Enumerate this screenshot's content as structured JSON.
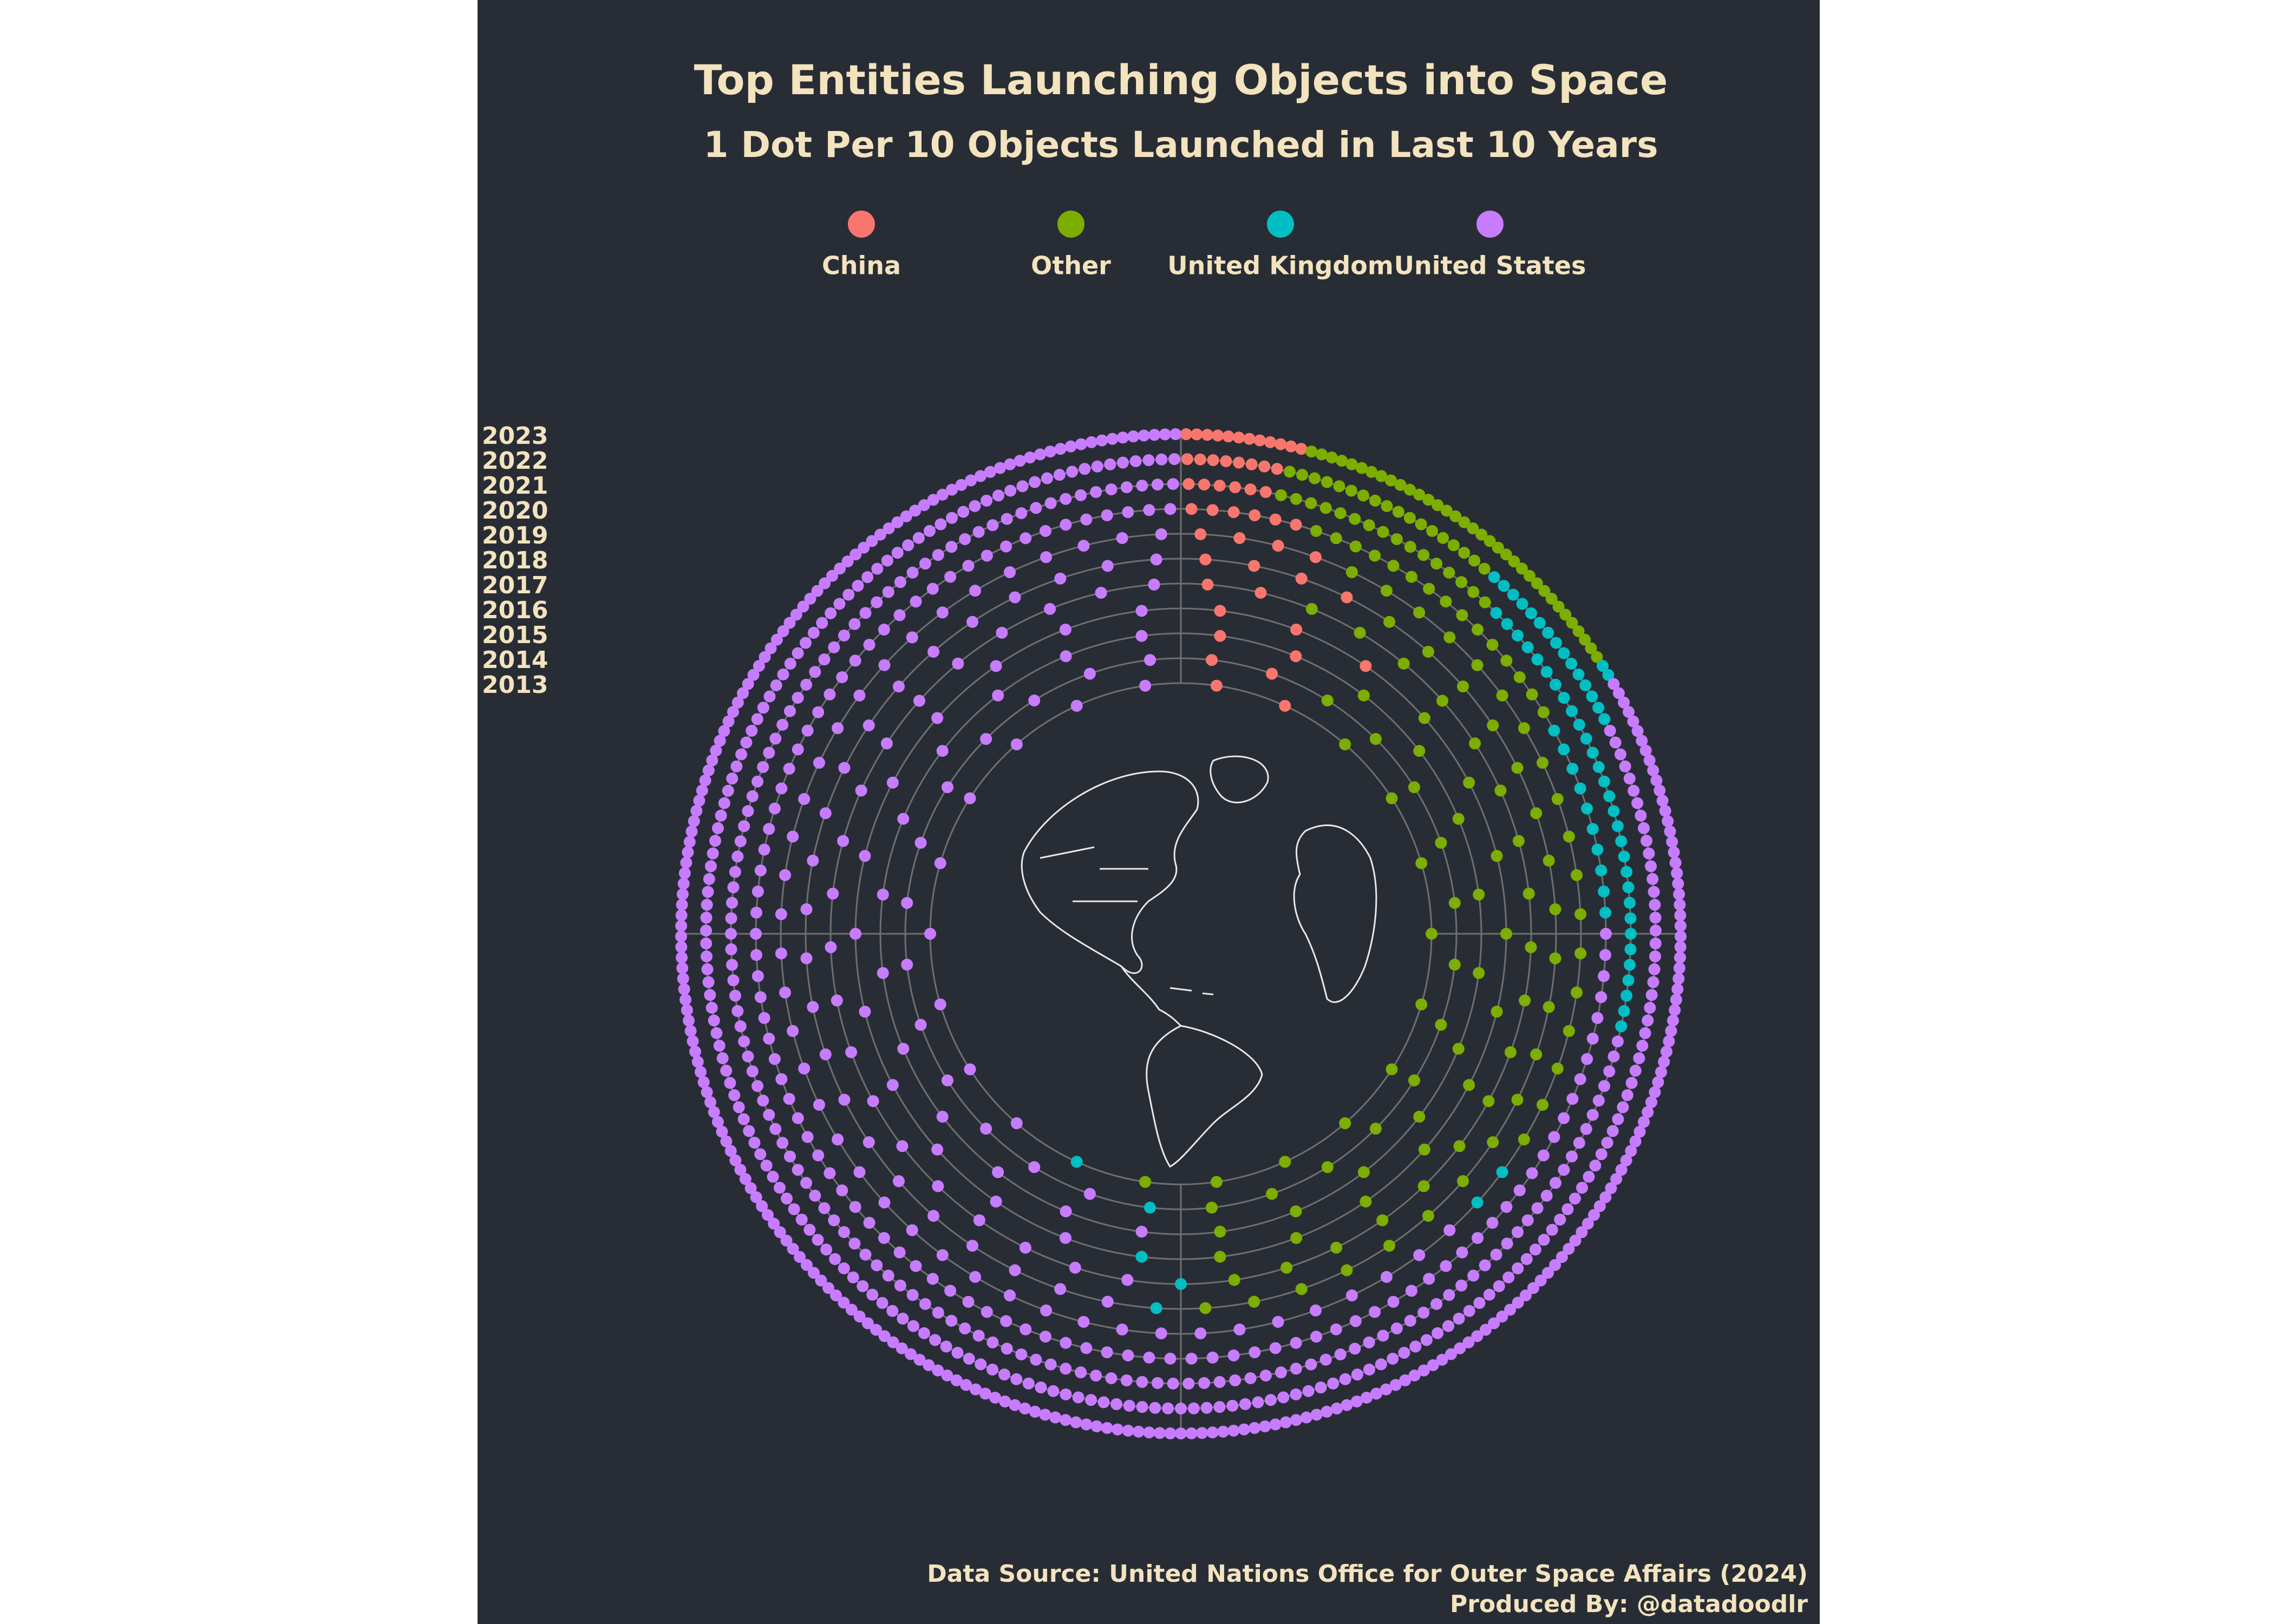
{
  "chart_data": {
    "type": "radial_dot",
    "title": "Top Entities Launching Objects into Space",
    "subtitle": "1 Dot Per 10 Objects Launched in Last 10 Years",
    "categories": [
      "2013",
      "2014",
      "2015",
      "2016",
      "2017",
      "2018",
      "2019",
      "2020",
      "2021",
      "2022",
      "2023"
    ],
    "series": [
      {
        "name": "China",
        "color": "#F8766D",
        "values": [
          2,
          2,
          2,
          3,
          2,
          4,
          4,
          6,
          6,
          8,
          12
        ]
      },
      {
        "name": "Other",
        "color": "#7CAE00",
        "values": [
          10,
          12,
          10,
          10,
          18,
          20,
          18,
          15,
          16,
          18,
          35
        ]
      },
      {
        "name": "United Kingdom",
        "color": "#00BFC4",
        "values": [
          1,
          1,
          0,
          1,
          1,
          1,
          2,
          10,
          30,
          15,
          2
        ]
      },
      {
        "name": "United States",
        "color": "#C77CFF",
        "values": [
          9,
          13,
          12,
          12,
          20,
          23,
          40,
          95,
          130,
          190,
          248
        ]
      }
    ],
    "caption": [
      "Data Source:  United Nations Office for Outer Space Affairs (2024)",
      "Produced By: @datadoodlr"
    ]
  }
}
